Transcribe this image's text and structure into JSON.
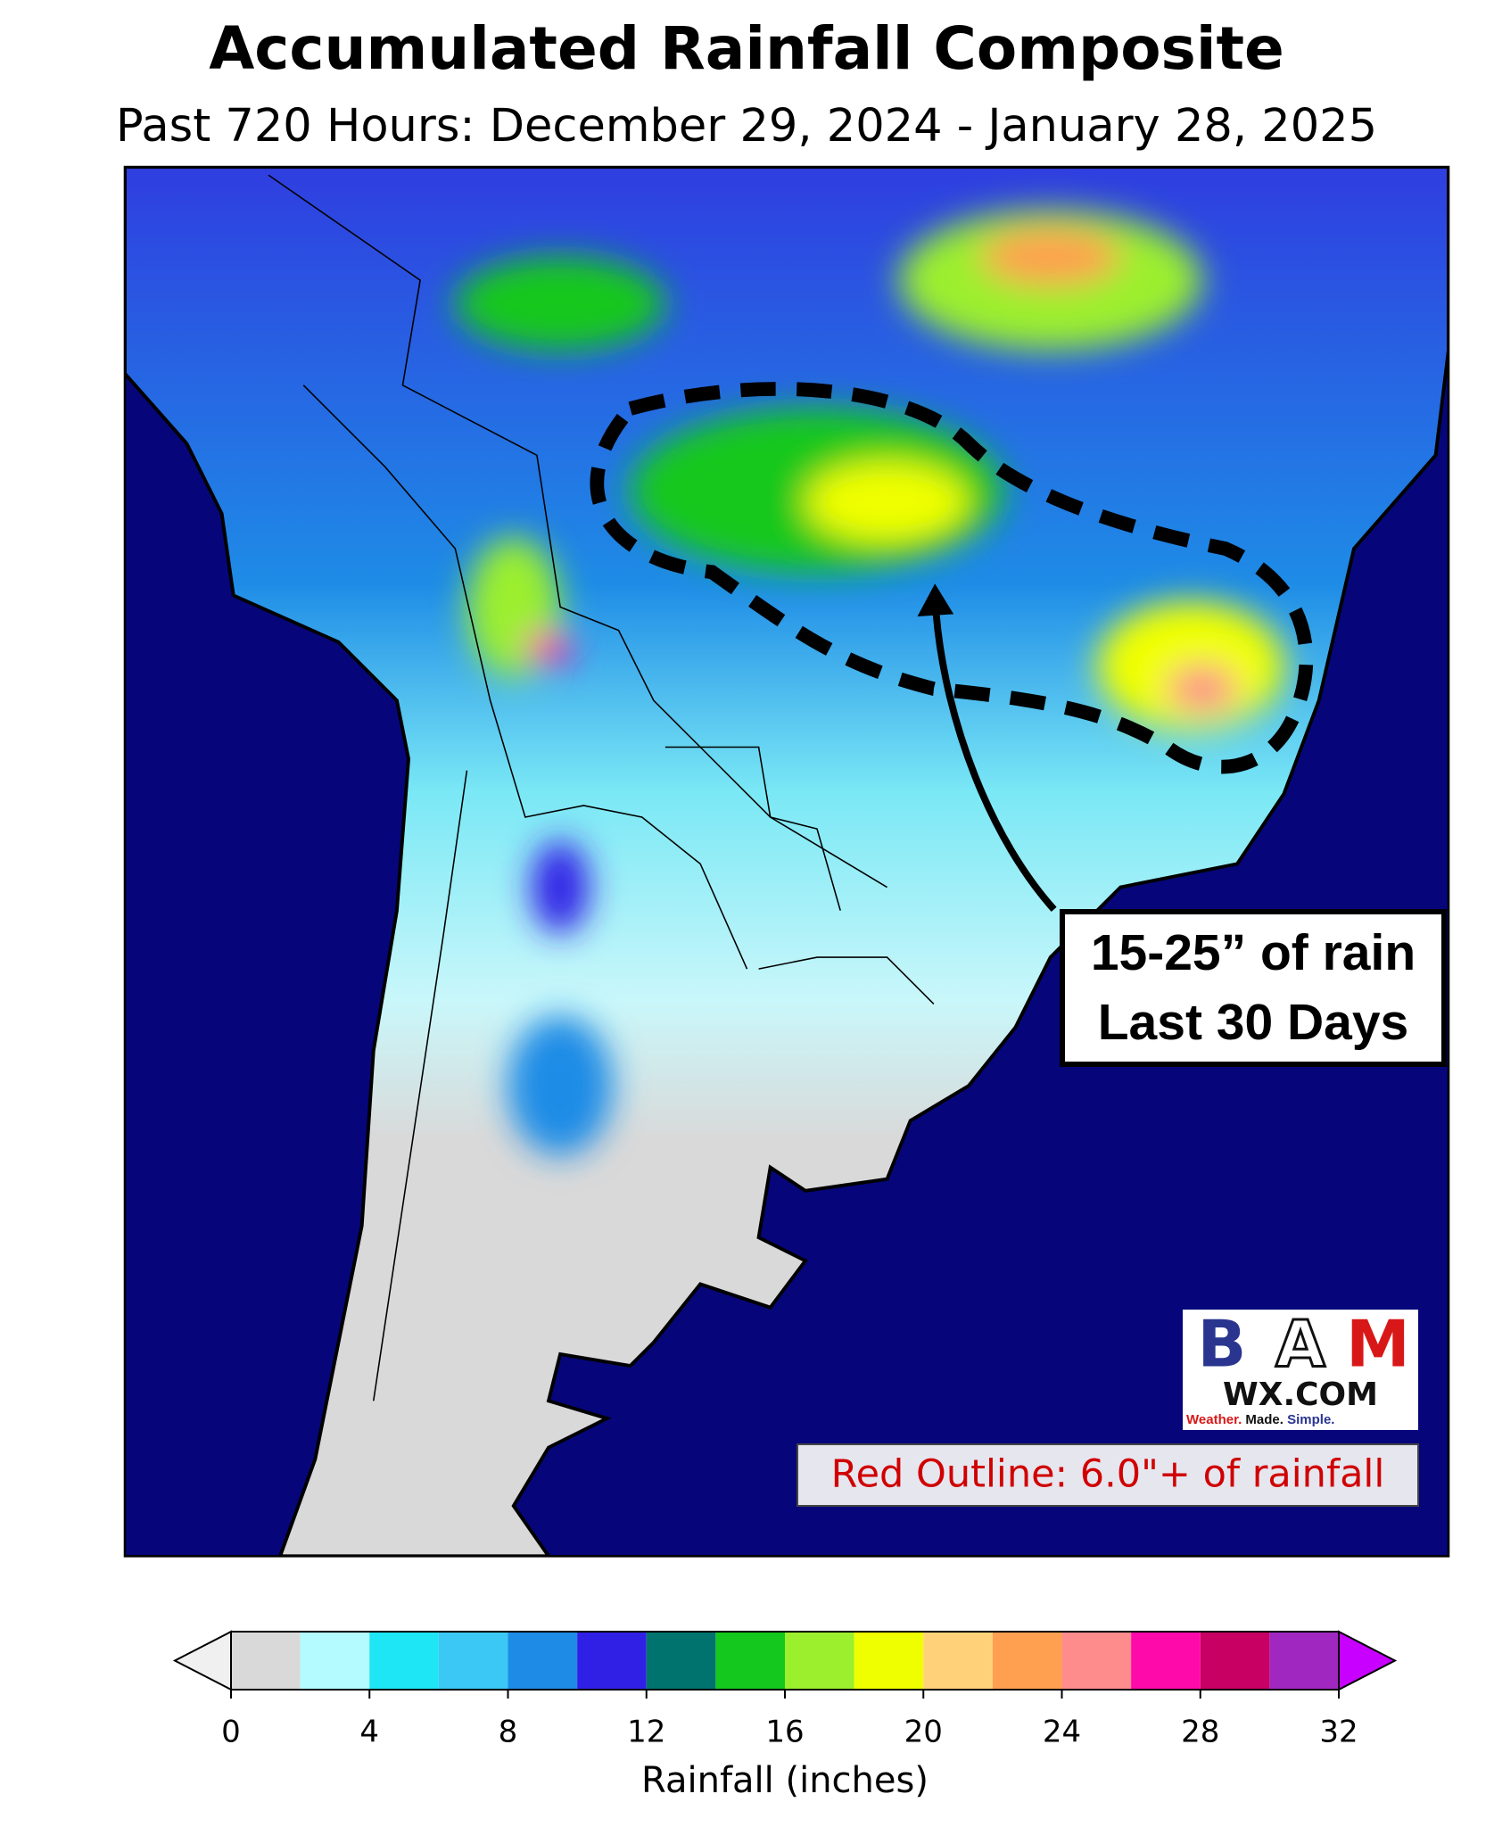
{
  "header": {
    "title": "Accumulated Rainfall Composite",
    "subtitle": "Past 720 Hours: December 29, 2024 - January 28, 2025"
  },
  "callout": {
    "lines": [
      "15-25” of rain",
      "Last 30 Days"
    ]
  },
  "legend_note": "Red Outline: 6.0\"+ of rainfall",
  "logo": {
    "letters": [
      "B",
      "A",
      "M"
    ],
    "domain": "WX.COM",
    "tagline": [
      "Weather.",
      "Made.",
      "Simple."
    ]
  },
  "colorbar": {
    "label": "Rainfall (inches)",
    "lim": [
      0,
      32
    ],
    "ticks": [
      0,
      4,
      8,
      12,
      16,
      20,
      24,
      28,
      32
    ],
    "bins": [
      0,
      2,
      4,
      6,
      8,
      10,
      12,
      14,
      16,
      18,
      20,
      22,
      24,
      26,
      28,
      30,
      32
    ],
    "colors": [
      "#d9d9d9",
      "#b3fbff",
      "#1ee6f5",
      "#3cc8f5",
      "#1e8ce6",
      "#3020e6",
      "#00736e",
      "#14c81e",
      "#9bef2d",
      "#f0ff00",
      "#ffd27a",
      "#ffa050",
      "#ff8c8c",
      "#ff0aaa",
      "#c80064",
      "#a028c0"
    ],
    "under_color": "#f0f0f0",
    "over_color": "#c800ff"
  }
}
